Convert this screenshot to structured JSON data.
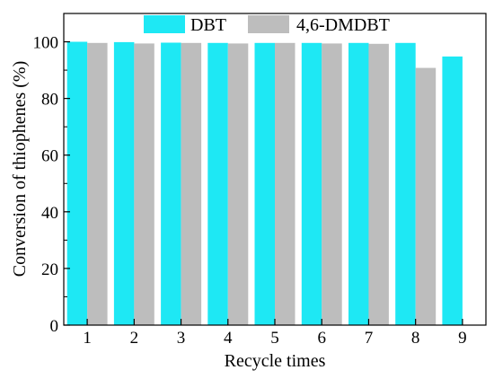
{
  "chart_data": {
    "type": "bar",
    "xlabel": "Recycle times",
    "ylabel": "Conversion of thiophenes (%)",
    "categories": [
      "1",
      "2",
      "3",
      "4",
      "5",
      "6",
      "7",
      "8",
      "9"
    ],
    "ylim": [
      0,
      110
    ],
    "yticks": [
      "0",
      "20",
      "40",
      "60",
      "80",
      "100"
    ],
    "grid": false,
    "legend_position": "top-right",
    "series": [
      {
        "name": "DBT",
        "color": "#1ee8f4",
        "values": [
          100.0,
          99.9,
          99.7,
          99.6,
          99.6,
          99.6,
          99.6,
          99.6,
          94.8
        ]
      },
      {
        "name": "4,6-DMDBT",
        "color": "#bdbdbd",
        "values": [
          99.6,
          99.4,
          99.6,
          99.4,
          99.6,
          99.4,
          99.3,
          90.8,
          null
        ]
      }
    ]
  }
}
